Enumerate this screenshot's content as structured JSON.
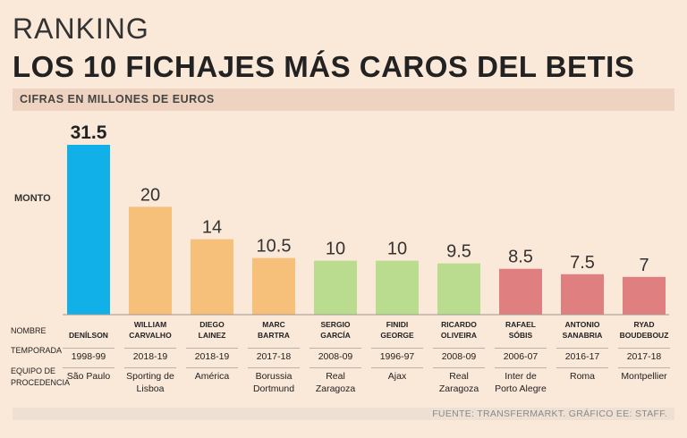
{
  "header": {
    "kicker": "RANKING",
    "title": "LOS 10 FICHAJES  MÁS CAROS DEL BETIS",
    "subtitle": "CIFRAS EN MILLONES DE EUROS"
  },
  "row_labels": {
    "monto": "MONTO",
    "nombre": "NOMBRE",
    "temporada": "TEMPORADA",
    "equipo_line1": "EQUIPO DE",
    "equipo_line2": "PROCEDENCIA"
  },
  "source": "FUENTE: TRANSFERMARKT. GRÁFICO EE: STAFF.",
  "colors": {
    "blue": "#12b0e8",
    "orange": "#f7c07a",
    "green": "#b9dc8e",
    "red": "#e07f7f"
  },
  "chart_data": {
    "type": "bar",
    "title": "LOS 10 FICHAJES  MÁS CAROS DEL BETIS",
    "ylabel": "MONTO",
    "ylim": [
      0,
      31.5
    ],
    "categories": [
      "DENÍLSON",
      "WILLIAM CARVALHO",
      "DIEGO LAINEZ",
      "MARC BARTRA",
      "SERGIO GARCÍA",
      "FINIDI GEORGE",
      "RICARDO OLIVEIRA",
      "RAFAEL SÓBIS",
      "ANTONIO SANABRIA",
      "RYAD BOUDEBOUZ"
    ],
    "values": [
      31.5,
      20,
      14,
      10.5,
      10,
      10,
      9.5,
      8.5,
      7.5,
      7
    ],
    "value_labels": [
      "31.5",
      "20",
      "14",
      "10.5",
      "10",
      "10",
      "9.5",
      "8.5",
      "7.5",
      "7"
    ],
    "bar_colors": [
      "blue",
      "orange",
      "orange",
      "orange",
      "green",
      "green",
      "green",
      "red",
      "red",
      "red"
    ]
  },
  "players": [
    {
      "name1": "",
      "name2": "DENÍLSON",
      "season": "1998-99",
      "team1": "São Paulo",
      "team2": ""
    },
    {
      "name1": "WILLIAM",
      "name2": "CARVALHO",
      "season": "2018-19",
      "team1": "Sporting de",
      "team2": "Lisboa"
    },
    {
      "name1": "DIEGO",
      "name2": "LAINEZ",
      "season": "2018-19",
      "team1": "América",
      "team2": ""
    },
    {
      "name1": "MARC",
      "name2": "BARTRA",
      "season": "2017-18",
      "team1": "Borussia",
      "team2": "Dortmund"
    },
    {
      "name1": "SERGIO",
      "name2": "GARCÍA",
      "season": "2008-09",
      "team1": "Real",
      "team2": "Zaragoza"
    },
    {
      "name1": "FINIDI",
      "name2": "GEORGE",
      "season": "1996-97",
      "team1": "Ajax",
      "team2": ""
    },
    {
      "name1": "RICARDO",
      "name2": "OLIVEIRA",
      "season": "2008-09",
      "team1": "Real",
      "team2": "Zaragoza"
    },
    {
      "name1": "RAFAEL",
      "name2": "SÓBIS",
      "season": "2006-07",
      "team1": "Inter de",
      "team2": "Porto Alegre"
    },
    {
      "name1": "ANTONIO",
      "name2": "SANABRIA",
      "season": "2016-17",
      "team1": "Roma",
      "team2": ""
    },
    {
      "name1": "RYAD",
      "name2": "BOUDEBOUZ",
      "season": "2017-18",
      "team1": "Montpellier",
      "team2": ""
    }
  ]
}
